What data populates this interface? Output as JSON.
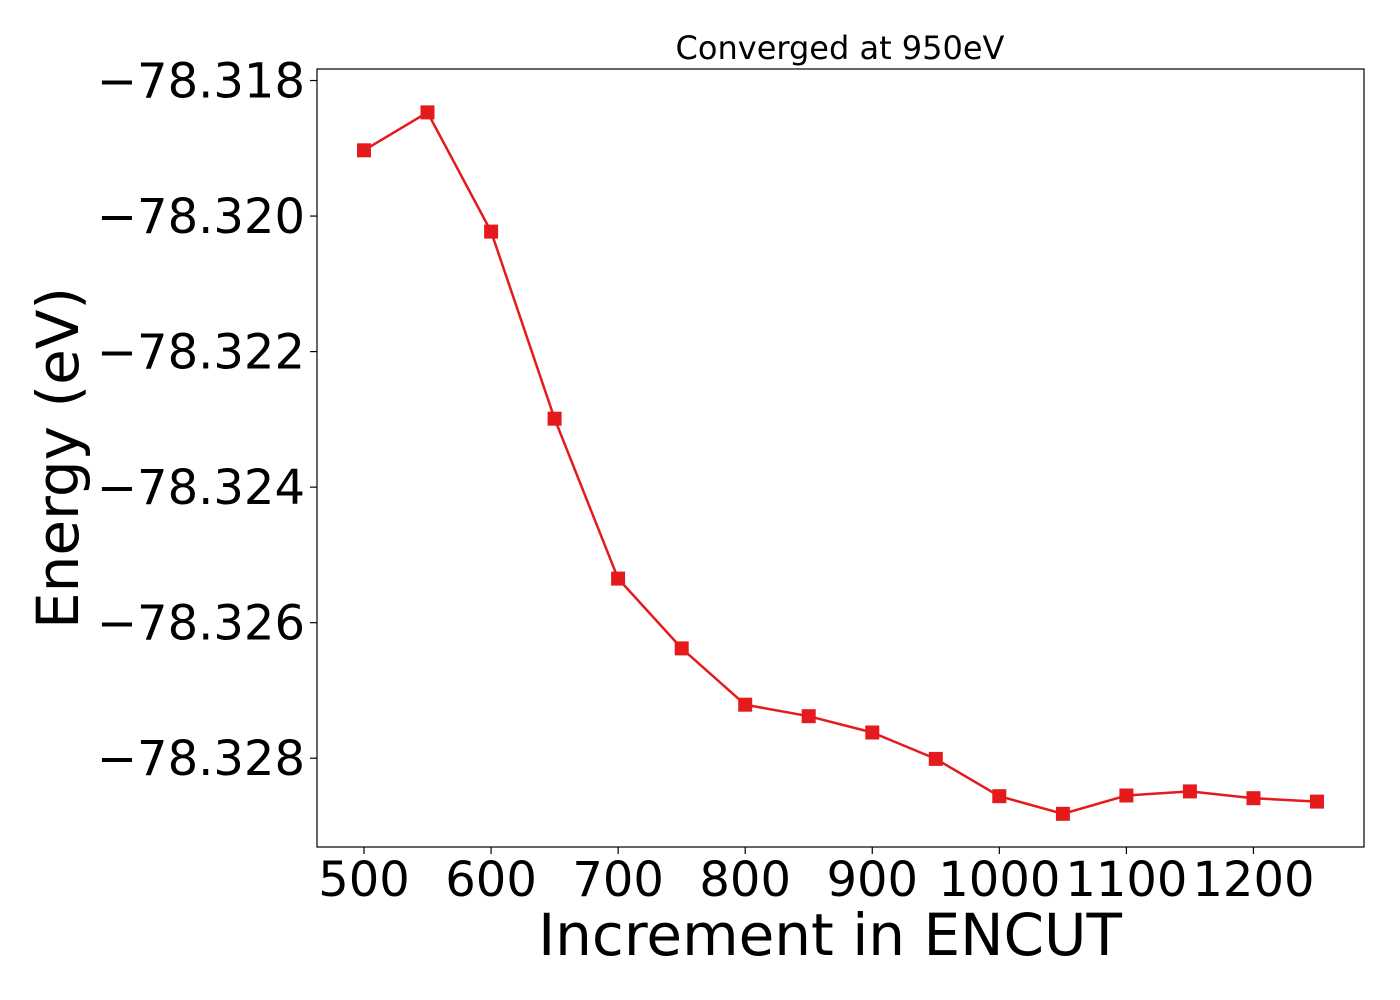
{
  "chart_data": {
    "type": "line",
    "title": "Converged at 950eV",
    "xlabel": "Increment in ENCUT",
    "ylabel": "Energy (eV)",
    "x": [
      500,
      550,
      600,
      650,
      700,
      750,
      800,
      850,
      900,
      950,
      1000,
      1050,
      1100,
      1150,
      1200,
      1250
    ],
    "series": [
      {
        "values": [
          -78.31903,
          -78.31847,
          -78.32023,
          -78.32299,
          -78.32535,
          -78.32638,
          -78.32721,
          -78.32738,
          -78.32762,
          -78.32801,
          -78.32856,
          -78.32882,
          -78.32855,
          -78.32849,
          -78.32859,
          -78.32864
        ],
        "color": "#e41a1c",
        "marker": "square"
      }
    ],
    "xticks": [
      500,
      600,
      700,
      800,
      900,
      1000,
      1100,
      1200
    ],
    "xtick_labels": [
      "500",
      "600",
      "700",
      "800",
      "900",
      "1000",
      "1100",
      "1200"
    ],
    "yticks": [
      -78.318,
      -78.32,
      -78.322,
      -78.324,
      -78.326,
      -78.328
    ],
    "ytick_labels": [
      "−78.318",
      "−78.320",
      "−78.322",
      "−78.324",
      "−78.326",
      "−78.328"
    ],
    "xlim": [
      463,
      1287
    ],
    "ylim": [
      -78.32931,
      -78.31783
    ],
    "grid": false,
    "legend": "none"
  }
}
